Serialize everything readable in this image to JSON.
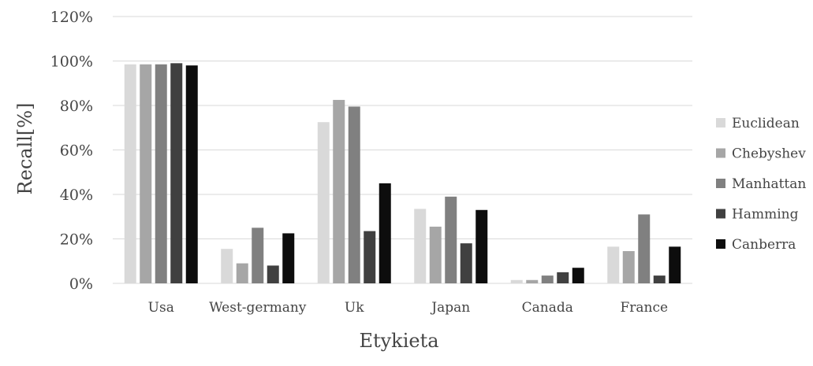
{
  "chart_data": {
    "type": "bar",
    "xlabel": "Etykieta",
    "ylabel": "Recall[%]",
    "ylim": [
      0,
      120
    ],
    "yticks": [
      0,
      20,
      40,
      60,
      80,
      100,
      120
    ],
    "ytick_labels": [
      "0%",
      "20%",
      "40%",
      "60%",
      "80%",
      "100%",
      "120%"
    ],
    "grid": true,
    "legend_position": "right",
    "categories": [
      "Usa",
      "West-germany",
      "Uk",
      "Japan",
      "Canada",
      "France"
    ],
    "series": [
      {
        "name": "Euclidean",
        "color": "#d9d9d9",
        "values": [
          98.5,
          15.5,
          72.5,
          33.5,
          1.5,
          16.5
        ]
      },
      {
        "name": "Chebyshev",
        "color": "#a6a6a6",
        "values": [
          98.5,
          9.0,
          82.5,
          25.5,
          1.5,
          14.5
        ]
      },
      {
        "name": "Manhattan",
        "color": "#808080",
        "values": [
          98.5,
          25.0,
          79.5,
          39.0,
          3.5,
          31.0
        ]
      },
      {
        "name": "Hamming",
        "color": "#404040",
        "values": [
          99.0,
          8.0,
          23.5,
          18.0,
          5.0,
          3.5
        ]
      },
      {
        "name": "Canberra",
        "color": "#0d0d0d",
        "values": [
          98.0,
          22.5,
          45.0,
          33.0,
          7.0,
          16.5
        ]
      }
    ]
  }
}
